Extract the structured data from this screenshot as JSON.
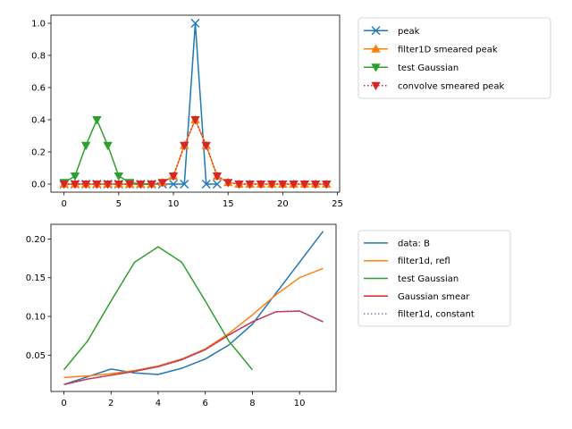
{
  "colors": {
    "blue": "#1f77b4",
    "orange": "#ff7f0e",
    "green": "#2ca02c",
    "red": "#d62728",
    "purple": "#9467bd"
  },
  "chart_data": [
    {
      "type": "line",
      "xlim": [
        -1.2,
        25.2
      ],
      "ylim": [
        -0.05,
        1.05
      ],
      "xticks": [
        0,
        5,
        10,
        15,
        20,
        25
      ],
      "yticks": [
        0.0,
        0.2,
        0.4,
        0.6,
        0.8,
        1.0
      ],
      "xtick_labels": [
        "0",
        "5",
        "10",
        "15",
        "20",
        "25"
      ],
      "ytick_labels": [
        "0.0",
        "0.2",
        "0.4",
        "0.6",
        "0.8",
        "1.0"
      ],
      "legend_position": "outside-right",
      "series": [
        {
          "name": "peak",
          "color": "#1f77b4",
          "marker": "x",
          "linestyle": "solid",
          "x": [
            0,
            1,
            2,
            3,
            4,
            5,
            6,
            7,
            8,
            9,
            10,
            11,
            12,
            13,
            14
          ],
          "values": [
            0,
            0,
            0,
            0,
            0,
            0,
            0,
            0,
            0,
            0,
            0,
            0,
            1.0,
            0,
            0
          ]
        },
        {
          "name": "filter1D smeared peak",
          "color": "#ff7f0e",
          "marker": "triangle-up",
          "linestyle": "solid",
          "x": [
            0,
            1,
            2,
            3,
            4,
            5,
            6,
            7,
            8,
            9,
            10,
            11,
            12,
            13,
            14,
            15,
            16,
            17,
            18,
            19,
            20,
            21,
            22,
            23,
            24
          ],
          "values": [
            0,
            0,
            0,
            0,
            0,
            0,
            0,
            0,
            0,
            0.01,
            0.05,
            0.24,
            0.4,
            0.24,
            0.05,
            0.01,
            0,
            0,
            0,
            0,
            0,
            0,
            0,
            0,
            0
          ]
        },
        {
          "name": "test Gaussian",
          "color": "#2ca02c",
          "marker": "triangle-down",
          "linestyle": "solid",
          "x": [
            0,
            1,
            2,
            3,
            4,
            5,
            6,
            7,
            8
          ],
          "values": [
            0.01,
            0.05,
            0.24,
            0.4,
            0.24,
            0.05,
            0.01,
            0,
            0
          ]
        },
        {
          "name": "convolve smeared peak",
          "color": "#d62728",
          "marker": "triangle-down",
          "linestyle": "dotted",
          "x": [
            0,
            1,
            2,
            3,
            4,
            5,
            6,
            7,
            8,
            9,
            10,
            11,
            12,
            13,
            14,
            15,
            16,
            17,
            18,
            19,
            20,
            21,
            22,
            23,
            24
          ],
          "values": [
            0,
            0,
            0,
            0,
            0,
            0,
            0,
            0,
            0,
            0.01,
            0.05,
            0.24,
            0.4,
            0.24,
            0.05,
            0.01,
            0,
            0,
            0,
            0,
            0,
            0,
            0,
            0,
            0
          ]
        }
      ]
    },
    {
      "type": "line",
      "xlim": [
        -0.55,
        11.55
      ],
      "ylim": [
        0.003,
        0.219
      ],
      "xticks": [
        0,
        2,
        4,
        6,
        8,
        10
      ],
      "yticks": [
        0.05,
        0.1,
        0.15,
        0.2
      ],
      "xtick_labels": [
        "0",
        "2",
        "4",
        "6",
        "8",
        "10"
      ],
      "ytick_labels": [
        "0.05",
        "0.10",
        "0.15",
        "0.20"
      ],
      "legend_position": "outside-right",
      "series": [
        {
          "name": "data: B",
          "color": "#1f77b4",
          "linestyle": "solid",
          "x": [
            0,
            1,
            2,
            3,
            4,
            5,
            6,
            7,
            8,
            9,
            10,
            11
          ],
          "values": [
            0.012,
            0.022,
            0.032,
            0.027,
            0.025,
            0.033,
            0.045,
            0.063,
            0.09,
            0.13,
            0.17,
            0.21
          ]
        },
        {
          "name": "filter1d, refl",
          "color": "#ff7f0e",
          "linestyle": "solid",
          "x": [
            0,
            1,
            2,
            3,
            4,
            5,
            6,
            7,
            8,
            9,
            10,
            11
          ],
          "values": [
            0.021,
            0.023,
            0.026,
            0.03,
            0.036,
            0.045,
            0.058,
            0.078,
            0.102,
            0.128,
            0.15,
            0.162
          ]
        },
        {
          "name": "test Gaussian",
          "color": "#2ca02c",
          "linestyle": "solid",
          "x": [
            0,
            1,
            2,
            3,
            4,
            5,
            6,
            7,
            8
          ],
          "values": [
            0.031,
            0.068,
            0.12,
            0.17,
            0.19,
            0.17,
            0.12,
            0.068,
            0.031
          ]
        },
        {
          "name": "Gaussian smear",
          "color": "#d62728",
          "linestyle": "solid",
          "x": [
            0,
            1,
            2,
            3,
            4,
            5,
            6,
            7,
            8,
            9,
            10,
            11
          ],
          "values": [
            0.012,
            0.019,
            0.024,
            0.029,
            0.035,
            0.044,
            0.057,
            0.076,
            0.093,
            0.106,
            0.107,
            0.093
          ]
        },
        {
          "name": "filter1d, constant",
          "color": "#9467bd",
          "linestyle": "dotted",
          "x": [
            0,
            1,
            2,
            3,
            4,
            5,
            6,
            7,
            8,
            9,
            10,
            11
          ],
          "values": [
            0.012,
            0.019,
            0.024,
            0.029,
            0.035,
            0.044,
            0.057,
            0.076,
            0.093,
            0.106,
            0.107,
            0.093
          ]
        }
      ]
    }
  ]
}
